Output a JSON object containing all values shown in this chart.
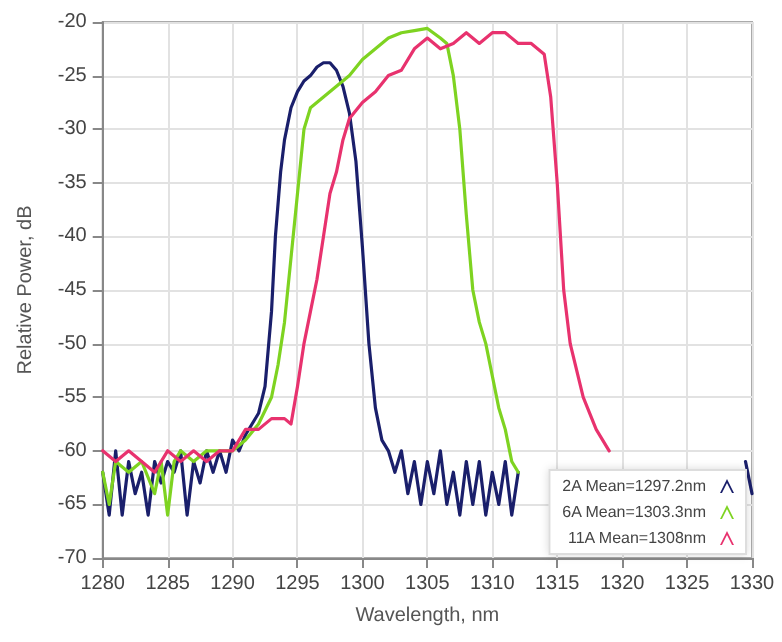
{
  "chart_data": {
    "type": "line",
    "xlabel": "Wavelength, nm",
    "ylabel": "Relative Power, dB",
    "xlim": [
      1280,
      1330
    ],
    "xticks": [
      1280,
      1285,
      1290,
      1295,
      1300,
      1305,
      1310,
      1315,
      1320,
      1325,
      1330
    ],
    "ylim": [
      -70,
      -20
    ],
    "yticks": [
      -70,
      -65,
      -60,
      -55,
      -50,
      -45,
      -40,
      -35,
      -30,
      -25,
      -20
    ],
    "grid": true,
    "legend": "bottom right",
    "marker": "none",
    "line_style": "solid",
    "series": [
      {
        "name": "2A Mean=1297.2nm",
        "color": "#1a1f6b",
        "x": [
          1280,
          1280.5,
          1281,
          1281.5,
          1282,
          1282.5,
          1283,
          1283.5,
          1284,
          1284.5,
          1285,
          1285.5,
          1286,
          1286.5,
          1287,
          1287.5,
          1288,
          1288.5,
          1289,
          1289.5,
          1290,
          1290.5,
          1291,
          1291.5,
          1292,
          1292.5,
          1293,
          1293.3,
          1293.7,
          1294,
          1294.5,
          1295,
          1295.5,
          1296,
          1296.5,
          1297,
          1297.5,
          1298,
          1298.5,
          1299,
          1299.5,
          1300,
          1300.5,
          1301,
          1301.5,
          1302,
          1302.5,
          1303,
          1303.5,
          1304,
          1304.5,
          1305,
          1305.5,
          1306,
          1306.5,
          1307,
          1307.5,
          1308,
          1308.5,
          1309,
          1309.5,
          1310,
          1310.5,
          1311,
          1311.5,
          1312,
          1312.5,
          1329.5,
          1330
        ],
        "values": [
          -62,
          -66,
          -60,
          -66,
          -61,
          -64,
          -62,
          -66,
          -61,
          -63,
          -61,
          -62,
          -60,
          -66,
          -61,
          -63,
          -60,
          -62,
          -60,
          -62,
          -59,
          -60,
          -58.5,
          -57.5,
          -56.5,
          -54,
          -47,
          -40,
          -34,
          -31,
          -28,
          -26.5,
          -25.5,
          -25,
          -24.2,
          -23.8,
          -23.8,
          -24.5,
          -26,
          -28.5,
          -33,
          -41,
          -50,
          -56,
          -59,
          -60,
          -62,
          -60,
          -64,
          -61,
          -65,
          -61,
          -64,
          -60,
          -65,
          -62,
          -66,
          -61,
          -65,
          -61,
          -66,
          -62,
          -65,
          -61,
          -66,
          -62,
          null,
          -61,
          -64
        ]
      },
      {
        "name": "6A Mean=1303.3nm",
        "color": "#7ed321",
        "x": [
          1280,
          1280.5,
          1281,
          1282,
          1283,
          1284,
          1284.5,
          1285,
          1285.5,
          1286,
          1287,
          1288,
          1289,
          1290,
          1291,
          1292,
          1293,
          1293.5,
          1294,
          1294.5,
          1295,
          1295.5,
          1296,
          1297,
          1298,
          1299,
          1300,
          1301,
          1302,
          1303,
          1304,
          1305,
          1306,
          1306.5,
          1307,
          1307.5,
          1308,
          1308.5,
          1309,
          1309.5,
          1310,
          1310.5,
          1311,
          1311.5,
          1312
        ],
        "values": [
          -62,
          -65,
          -61,
          -62,
          -61,
          -64,
          -61,
          -66,
          -61,
          -60,
          -61,
          -60,
          -60,
          -60,
          -59,
          -57.5,
          -55,
          -52,
          -48,
          -42,
          -36,
          -30,
          -28,
          -27,
          -26,
          -25,
          -23.5,
          -22.5,
          -21.5,
          -21,
          -20.8,
          -20.6,
          -21.5,
          -22,
          -25,
          -30,
          -38,
          -45,
          -48,
          -50,
          -53,
          -56,
          -58,
          -61,
          -62
        ]
      },
      {
        "name": "11A Mean=1308nm",
        "color": "#e8326e",
        "x": [
          1280,
          1281,
          1282,
          1283,
          1284,
          1285,
          1286,
          1287,
          1288,
          1289,
          1290,
          1291,
          1292,
          1293,
          1294,
          1294.5,
          1295,
          1295.5,
          1296,
          1296.5,
          1297,
          1297.5,
          1298,
          1298.5,
          1299,
          1300,
          1301,
          1302,
          1303,
          1304,
          1305,
          1306,
          1307,
          1308,
          1309,
          1310,
          1311,
          1312,
          1313,
          1314,
          1314.5,
          1315,
          1315.5,
          1316,
          1317,
          1318,
          1319
        ],
        "values": [
          -60,
          -61,
          -60,
          -61,
          -62,
          -60,
          -61,
          -60,
          -61,
          -60,
          -60,
          -58,
          -58,
          -57,
          -57,
          -57.5,
          -54,
          -50,
          -47,
          -44,
          -40,
          -36,
          -34,
          -31,
          -29,
          -27.5,
          -26.5,
          -25,
          -24.5,
          -22.5,
          -21.5,
          -22.5,
          -22,
          -21,
          -22,
          -21,
          -21,
          -22,
          -22,
          -23,
          -27,
          -35,
          -45,
          -50,
          -55,
          -58,
          -60
        ]
      }
    ]
  }
}
